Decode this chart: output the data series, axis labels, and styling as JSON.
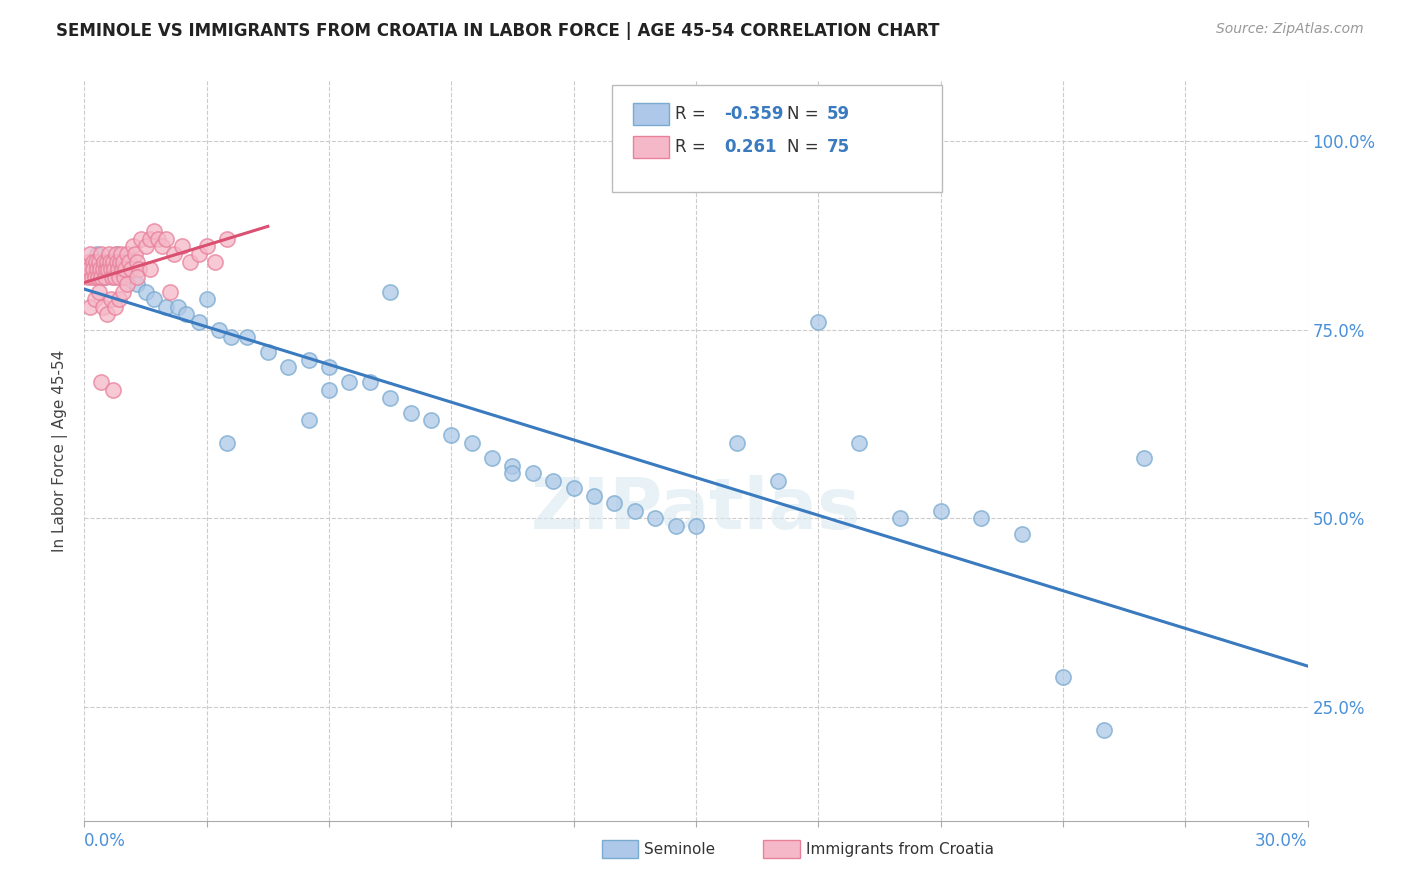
{
  "title": "SEMINOLE VS IMMIGRANTS FROM CROATIA IN LABOR FORCE | AGE 45-54 CORRELATION CHART",
  "source": "Source: ZipAtlas.com",
  "ylabel_label": "In Labor Force | Age 45-54",
  "xlim": [
    0.0,
    30.0
  ],
  "ylim": [
    10.0,
    108.0
  ],
  "blue_color": "#adc8e8",
  "blue_edge": "#7aaad0",
  "pink_color": "#f5b8c8",
  "pink_edge": "#e8809a",
  "trend_blue": "#3a7abf",
  "trend_pink": "#d95070",
  "background": "#ffffff",
  "grid_color": "#cccccc",
  "label_color": "#4a90d9",
  "text_color": "#444444",
  "seminole_x": [
    0.2,
    0.3,
    0.4,
    0.5,
    0.6,
    0.7,
    0.8,
    0.9,
    1.0,
    1.1,
    1.3,
    1.5,
    1.7,
    2.0,
    2.3,
    2.5,
    2.8,
    3.0,
    3.3,
    3.6,
    4.0,
    4.5,
    5.0,
    5.5,
    6.0,
    6.5,
    7.0,
    7.5,
    8.0,
    8.5,
    9.0,
    9.5,
    10.0,
    10.5,
    11.0,
    11.5,
    12.0,
    12.5,
    13.0,
    13.5,
    14.0,
    14.5,
    15.0,
    16.0,
    17.0,
    18.0,
    19.0,
    20.0,
    21.0,
    22.0,
    23.0,
    24.0,
    25.0,
    26.0,
    7.5,
    10.5,
    6.0,
    3.5,
    5.5
  ],
  "seminole_y": [
    84,
    85,
    83,
    82,
    84,
    83,
    85,
    82,
    84,
    83,
    81,
    80,
    79,
    78,
    78,
    77,
    76,
    79,
    75,
    74,
    74,
    72,
    70,
    71,
    70,
    68,
    68,
    66,
    64,
    63,
    61,
    60,
    58,
    57,
    56,
    55,
    54,
    53,
    52,
    51,
    50,
    49,
    49,
    60,
    55,
    76,
    60,
    50,
    51,
    50,
    48,
    29,
    22,
    58,
    80,
    56,
    67,
    60,
    63
  ],
  "croatia_x": [
    0.05,
    0.08,
    0.1,
    0.12,
    0.15,
    0.18,
    0.2,
    0.22,
    0.25,
    0.28,
    0.3,
    0.33,
    0.35,
    0.38,
    0.4,
    0.42,
    0.45,
    0.48,
    0.5,
    0.52,
    0.55,
    0.58,
    0.6,
    0.62,
    0.65,
    0.68,
    0.7,
    0.72,
    0.75,
    0.78,
    0.8,
    0.82,
    0.85,
    0.88,
    0.9,
    0.92,
    0.95,
    0.98,
    1.0,
    1.05,
    1.1,
    1.15,
    1.2,
    1.25,
    1.3,
    1.35,
    1.4,
    1.5,
    1.6,
    1.7,
    1.8,
    1.9,
    2.0,
    2.2,
    2.4,
    2.6,
    2.8,
    3.0,
    3.2,
    3.5,
    0.15,
    0.25,
    0.35,
    0.45,
    0.55,
    0.65,
    0.75,
    0.85,
    0.95,
    1.05,
    1.3,
    1.6,
    2.1,
    0.4,
    0.7
  ],
  "croatia_y": [
    83,
    82,
    84,
    83,
    85,
    82,
    84,
    83,
    82,
    84,
    83,
    82,
    84,
    83,
    85,
    82,
    83,
    84,
    82,
    83,
    84,
    83,
    85,
    84,
    83,
    82,
    84,
    83,
    82,
    85,
    84,
    83,
    82,
    84,
    85,
    83,
    84,
    82,
    83,
    85,
    84,
    83,
    86,
    85,
    84,
    83,
    87,
    86,
    87,
    88,
    87,
    86,
    87,
    85,
    86,
    84,
    85,
    86,
    84,
    87,
    78,
    79,
    80,
    78,
    77,
    79,
    78,
    79,
    80,
    81,
    82,
    83,
    80,
    68,
    67
  ]
}
